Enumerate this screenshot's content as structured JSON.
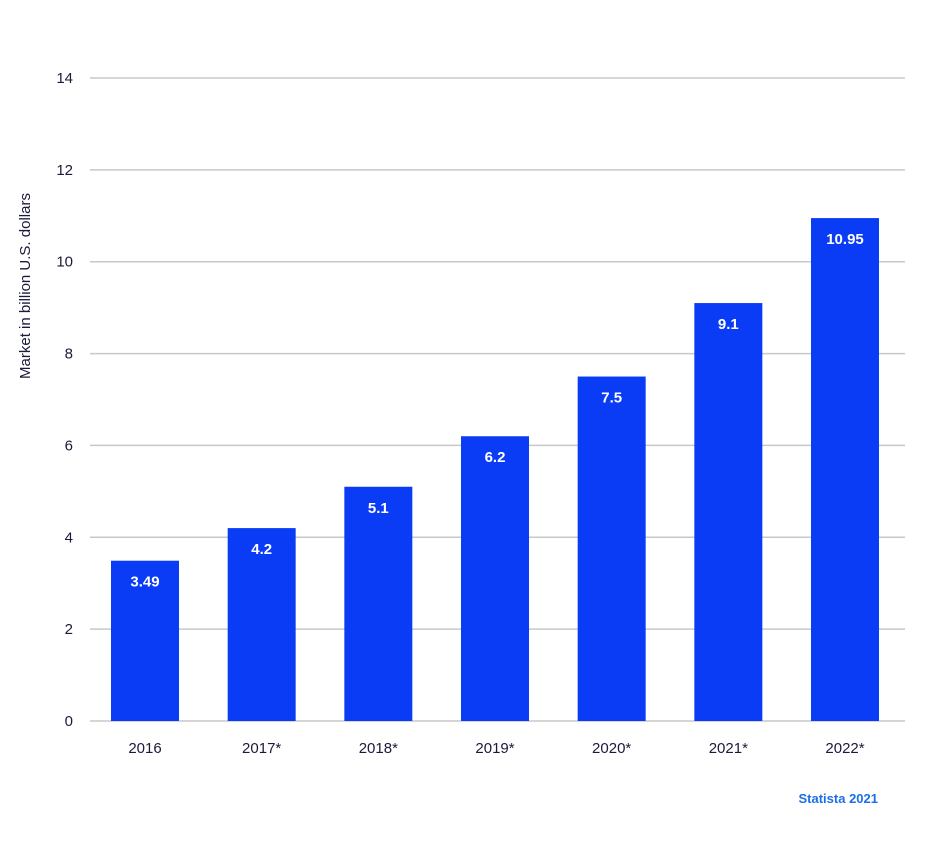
{
  "chart_data": {
    "type": "bar",
    "categories": [
      "2016",
      "2017*",
      "2018*",
      "2019*",
      "2020*",
      "2021*",
      "2022*"
    ],
    "values": [
      3.49,
      4.2,
      5.1,
      6.2,
      7.5,
      9.1,
      10.95
    ],
    "data_labels": [
      "3.49",
      "4.2",
      "5.1",
      "6.2",
      "7.5",
      "9.1",
      "10.95"
    ],
    "ylabel": "Market in billion U.S. dollars",
    "xlabel": "",
    "ylim": [
      0,
      14
    ],
    "yticks": [
      "0",
      "2",
      "4",
      "6",
      "8",
      "10",
      "12",
      "14"
    ],
    "grid": true,
    "bar_color": "#0a3cf5",
    "text_color": "#1a1a3a"
  },
  "source": {
    "text": "Statista 2021",
    "color": "#1c6fe8"
  }
}
